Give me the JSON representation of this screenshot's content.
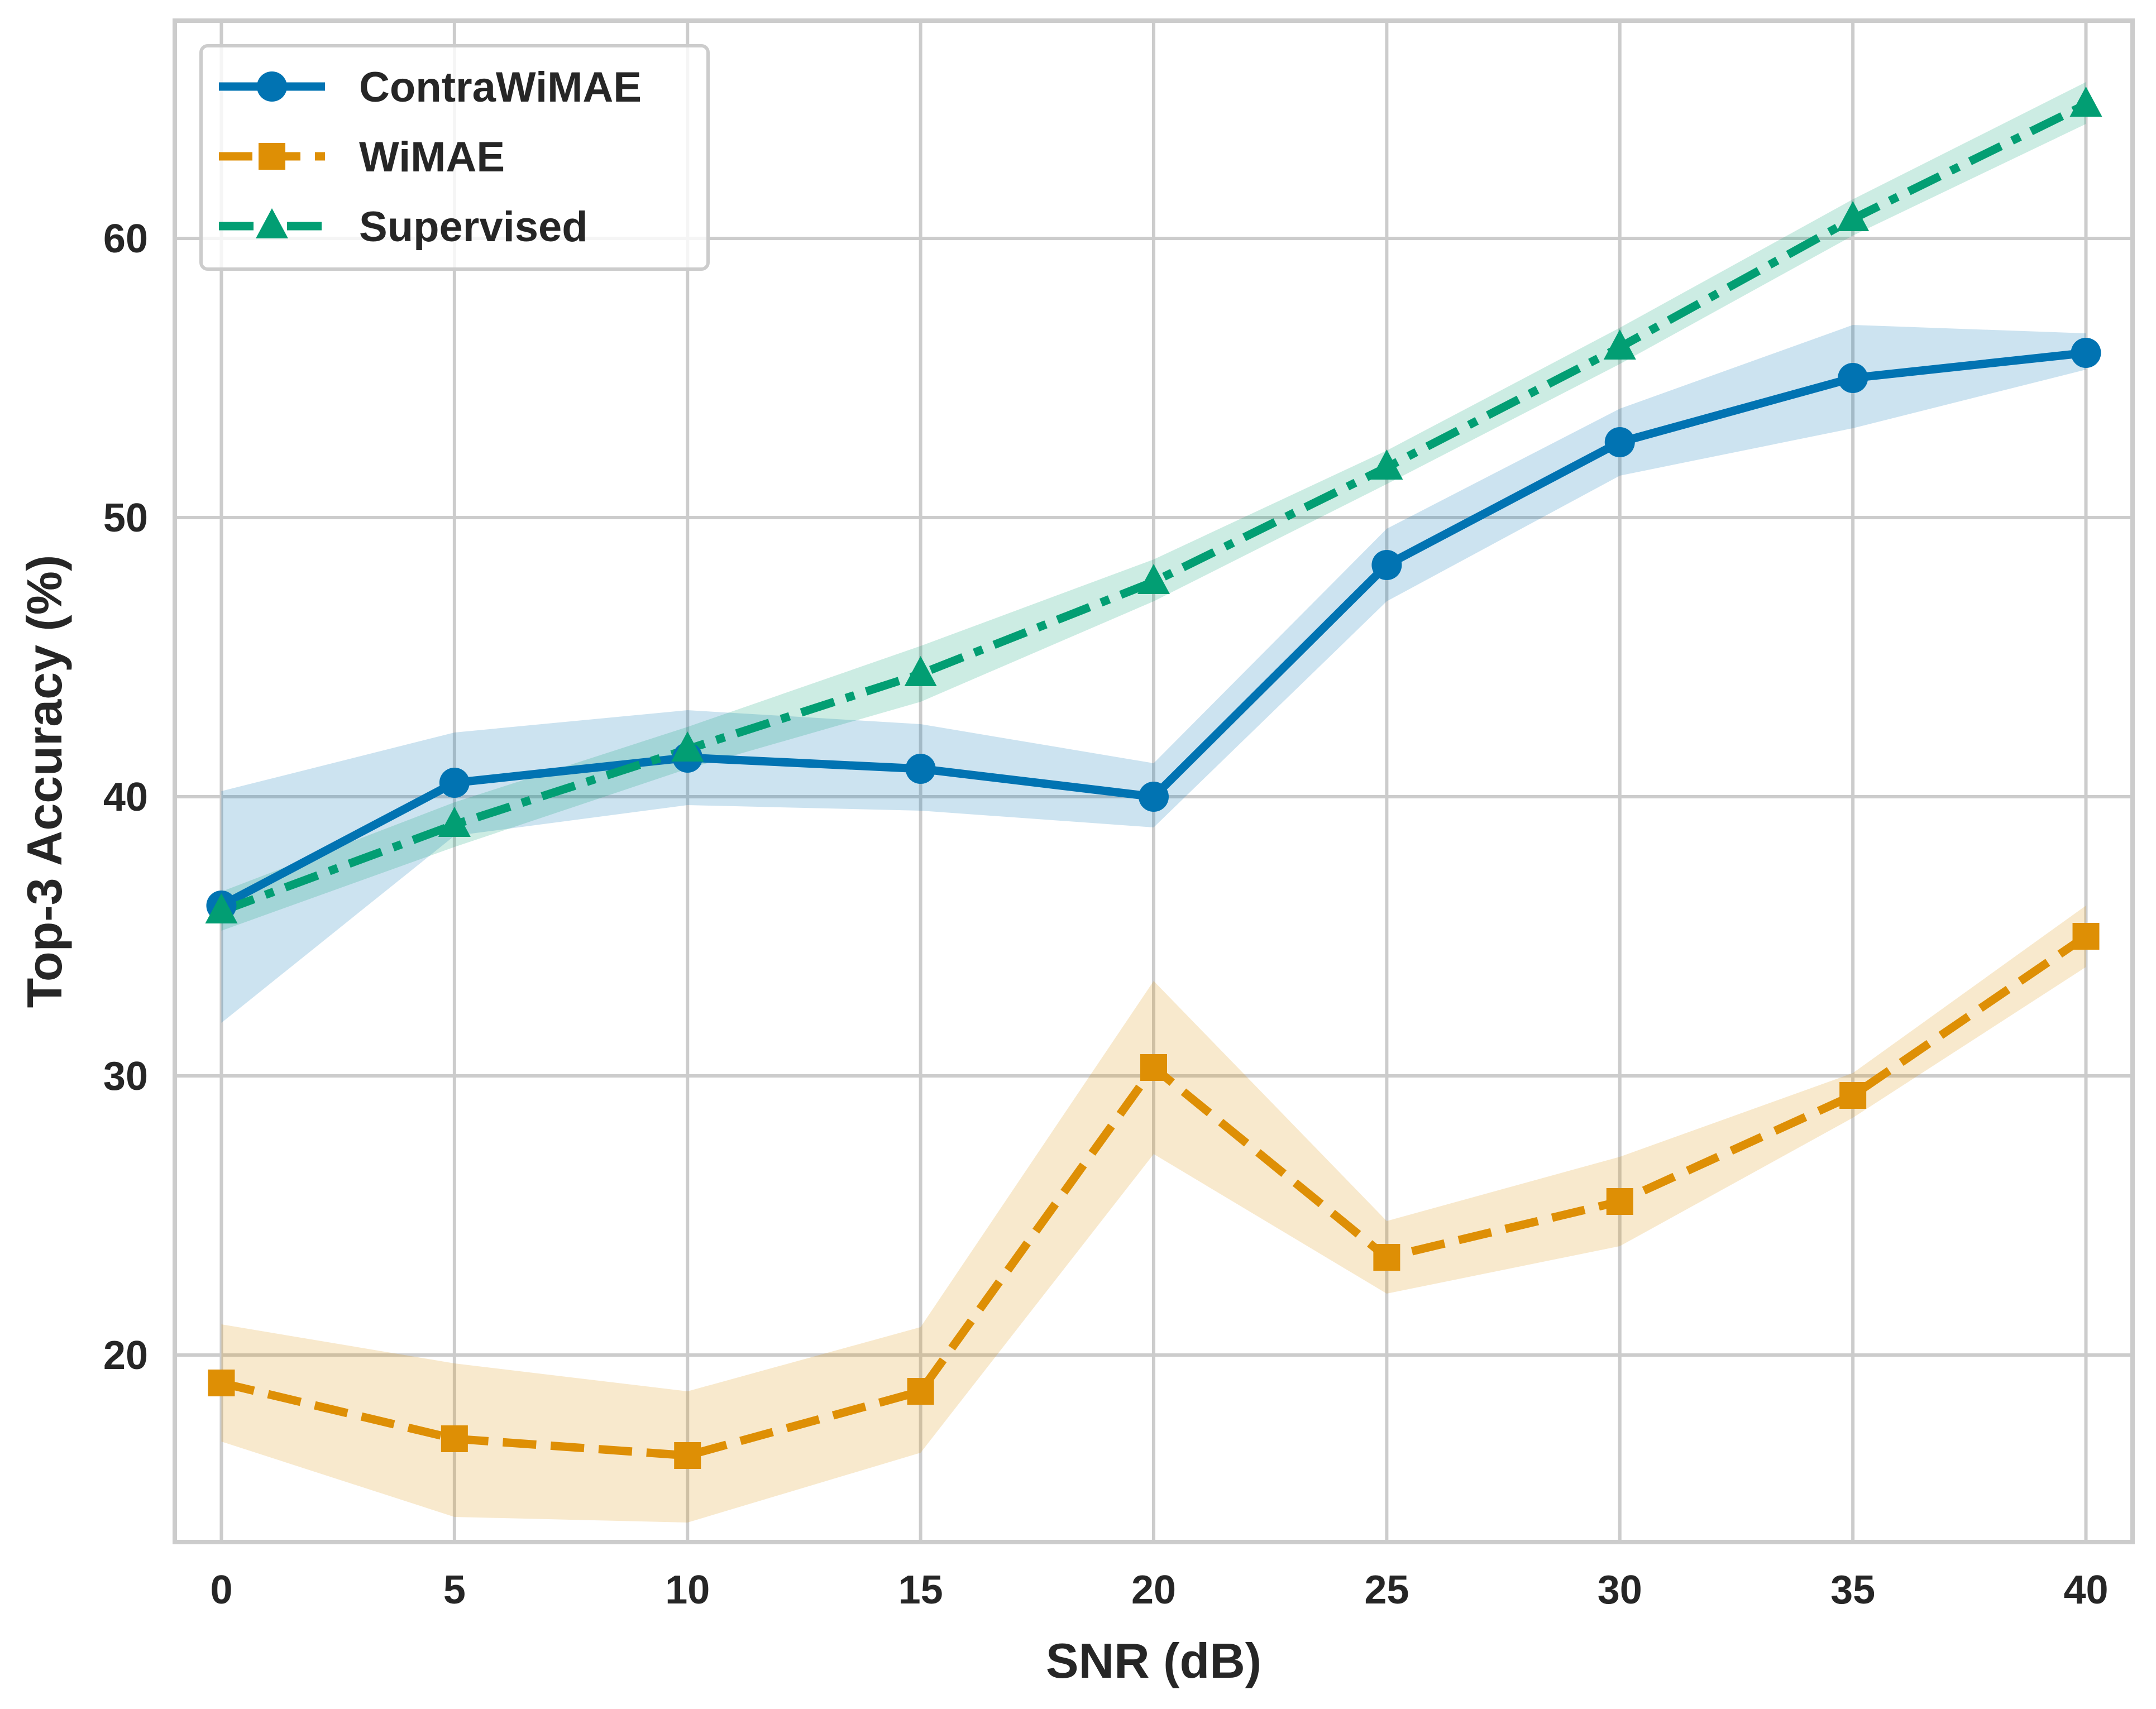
{
  "chart_data": {
    "type": "line",
    "title": "",
    "xlabel": "SNR (dB)",
    "ylabel": "Top-3 Accuracy (%)",
    "x": [
      0,
      5,
      10,
      15,
      20,
      25,
      30,
      35,
      40
    ],
    "xticks": [
      "0",
      "5",
      "10",
      "15",
      "20",
      "25",
      "30",
      "35",
      "40"
    ],
    "yticks": [
      "20",
      "30",
      "40",
      "50",
      "60"
    ],
    "xlim": [
      -1,
      41
    ],
    "ylim": [
      13.3,
      67.8
    ],
    "grid": true,
    "legend_position": "top-left",
    "series": [
      {
        "name": "ContraWiMAE",
        "color": "#0173b2",
        "marker": "circle",
        "linestyle": "solid",
        "values": [
          36.1,
          40.5,
          41.4,
          41.0,
          40.0,
          48.3,
          52.7,
          55.0,
          55.9
        ],
        "lower": [
          31.9,
          38.6,
          39.7,
          39.5,
          38.9,
          47.0,
          51.5,
          53.2,
          55.3
        ],
        "upper": [
          40.2,
          42.3,
          43.1,
          42.6,
          41.2,
          49.6,
          53.9,
          56.9,
          56.6
        ]
      },
      {
        "name": "WiMAE",
        "color": "#de8f05",
        "marker": "square",
        "linestyle": "dashed",
        "values": [
          19.0,
          17.0,
          16.4,
          18.7,
          30.3,
          23.5,
          25.5,
          29.3,
          35.0
        ],
        "lower": [
          16.9,
          14.2,
          14.0,
          16.5,
          27.2,
          22.2,
          23.9,
          28.5,
          33.9
        ],
        "upper": [
          21.1,
          19.7,
          18.7,
          21.0,
          33.4,
          24.8,
          27.1,
          30.1,
          36.1
        ]
      },
      {
        "name": "Supervised",
        "color": "#029e73",
        "marker": "triangle",
        "linestyle": "dashdot",
        "values": [
          35.9,
          39.0,
          41.7,
          44.4,
          47.7,
          51.8,
          56.1,
          60.7,
          64.8
        ],
        "lower": [
          35.2,
          38.2,
          41.0,
          43.4,
          47.0,
          51.2,
          55.5,
          60.1,
          64.1
        ],
        "upper": [
          36.6,
          39.8,
          42.5,
          45.4,
          48.5,
          52.4,
          56.8,
          61.4,
          65.6
        ]
      }
    ]
  }
}
